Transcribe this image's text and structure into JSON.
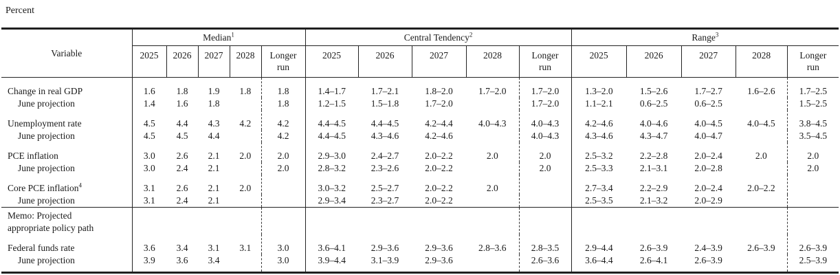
{
  "page": {
    "unit_label": "Percent"
  },
  "table": {
    "variable_header": "Variable",
    "year_labels": [
      "2025",
      "2026",
      "2027",
      "2028"
    ],
    "longer_run": {
      "line1": "Longer",
      "line2": "run"
    },
    "sections": [
      {
        "key": "median",
        "label": "Median",
        "footnote": "1"
      },
      {
        "key": "central",
        "label": "Central Tendency",
        "footnote": "2"
      },
      {
        "key": "range",
        "label": "Range",
        "footnote": "3"
      }
    ],
    "rows": [
      {
        "name": "row-change-in-real-gdp",
        "label": "Change in real GDP",
        "group_start": true,
        "median": [
          "1.6",
          "1.8",
          "1.9",
          "1.8",
          "1.8"
        ],
        "central": [
          "1.4–1.7",
          "1.7–2.1",
          "1.8–2.0",
          "1.7–2.0",
          "1.7–2.0"
        ],
        "range": [
          "1.3–2.0",
          "1.5–2.6",
          "1.7–2.7",
          "1.6–2.6",
          "1.7–2.5"
        ]
      },
      {
        "name": "row-gdp-june-projection",
        "label": "June projection",
        "indent": true,
        "median": [
          "1.4",
          "1.6",
          "1.8",
          "",
          "1.8"
        ],
        "central": [
          "1.2–1.5",
          "1.5–1.8",
          "1.7–2.0",
          "",
          "1.7–2.0"
        ],
        "range": [
          "1.1–2.1",
          "0.6–2.5",
          "0.6–2.5",
          "",
          "1.5–2.5"
        ]
      },
      {
        "name": "row-unemployment-rate",
        "label": "Unemployment rate",
        "group_start": true,
        "median": [
          "4.5",
          "4.4",
          "4.3",
          "4.2",
          "4.2"
        ],
        "central": [
          "4.4–4.5",
          "4.4–4.5",
          "4.2–4.4",
          "4.0–4.3",
          "4.0–4.3"
        ],
        "range": [
          "4.2–4.6",
          "4.0–4.6",
          "4.0–4.5",
          "4.0–4.5",
          "3.8–4.5"
        ]
      },
      {
        "name": "row-unemployment-june-projection",
        "label": "June projection",
        "indent": true,
        "median": [
          "4.5",
          "4.5",
          "4.4",
          "",
          "4.2"
        ],
        "central": [
          "4.4–4.5",
          "4.3–4.6",
          "4.2–4.6",
          "",
          "4.0–4.3"
        ],
        "range": [
          "4.3–4.6",
          "4.3–4.7",
          "4.0–4.7",
          "",
          "3.5–4.5"
        ]
      },
      {
        "name": "row-pce-inflation",
        "label": "PCE inflation",
        "group_start": true,
        "median": [
          "3.0",
          "2.6",
          "2.1",
          "2.0",
          "2.0"
        ],
        "central": [
          "2.9–3.0",
          "2.4–2.7",
          "2.0–2.2",
          "2.0",
          "2.0"
        ],
        "range": [
          "2.5–3.2",
          "2.2–2.8",
          "2.0–2.4",
          "2.0",
          "2.0"
        ]
      },
      {
        "name": "row-pce-june-projection",
        "label": "June projection",
        "indent": true,
        "median": [
          "3.0",
          "2.4",
          "2.1",
          "",
          "2.0"
        ],
        "central": [
          "2.8–3.2",
          "2.3–2.6",
          "2.0–2.2",
          "",
          "2.0"
        ],
        "range": [
          "2.5–3.3",
          "2.1–3.1",
          "2.0–2.8",
          "",
          "2.0"
        ]
      },
      {
        "name": "row-core-pce-inflation",
        "label": "Core PCE inflation",
        "footnote": "4",
        "group_start": true,
        "median": [
          "3.1",
          "2.6",
          "2.1",
          "2.0",
          ""
        ],
        "central": [
          "3.0–3.2",
          "2.5–2.7",
          "2.0–2.2",
          "2.0",
          ""
        ],
        "range": [
          "2.7–3.4",
          "2.2–2.9",
          "2.0–2.4",
          "2.0–2.2",
          ""
        ]
      },
      {
        "name": "row-core-pce-june-projection",
        "label": "June projection",
        "indent": true,
        "median": [
          "3.1",
          "2.4",
          "2.1",
          "",
          ""
        ],
        "central": [
          "2.9–3.4",
          "2.3–2.7",
          "2.0–2.2",
          "",
          ""
        ],
        "range": [
          "2.5–3.5",
          "2.1–3.2",
          "2.0–2.9",
          "",
          ""
        ]
      },
      {
        "name": "row-memo-policy-path",
        "label_lines": [
          "Memo: Projected",
          "appropriate policy path"
        ],
        "rule_above": true,
        "median": [
          "",
          "",
          "",
          "",
          ""
        ],
        "central": [
          "",
          "",
          "",
          "",
          ""
        ],
        "range": [
          "",
          "",
          "",
          "",
          ""
        ]
      },
      {
        "name": "row-federal-funds-rate",
        "label": "Federal funds rate",
        "group_start": true,
        "median": [
          "3.6",
          "3.4",
          "3.1",
          "3.1",
          "3.0"
        ],
        "central": [
          "3.6–4.1",
          "2.9–3.6",
          "2.9–3.6",
          "2.8–3.6",
          "2.8–3.5"
        ],
        "range": [
          "2.9–4.4",
          "2.6–3.9",
          "2.4–3.9",
          "2.6–3.9",
          "2.6–3.9"
        ]
      },
      {
        "name": "row-ffr-june-projection",
        "label": "June projection",
        "indent": true,
        "median": [
          "3.9",
          "3.6",
          "3.4",
          "",
          "3.0"
        ],
        "central": [
          "3.9–4.4",
          "3.1–3.9",
          "2.9–3.6",
          "",
          "2.6–3.6"
        ],
        "range": [
          "3.6–4.4",
          "2.6–4.1",
          "2.6–3.9",
          "",
          "2.5–3.9"
        ]
      }
    ]
  }
}
